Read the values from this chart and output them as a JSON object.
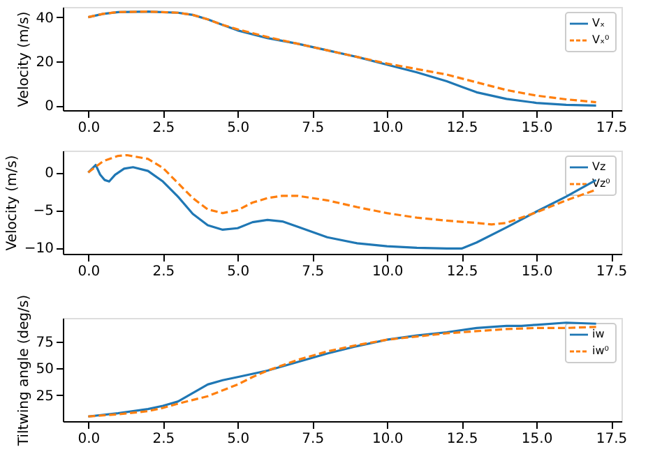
{
  "chart_data": [
    {
      "type": "line",
      "ylabel": "Velocity (m/s)",
      "xlim": [
        -0.85,
        17.85
      ],
      "xticks": [
        {
          "value": 0,
          "label": "0.0"
        },
        2.5,
        {
          "value": 5,
          "label": "5.0"
        },
        7.5,
        {
          "value": 10,
          "label": "10.0"
        },
        12.5,
        {
          "value": 15,
          "label": "15.0"
        },
        17.5
      ],
      "ylim": [
        -2.1,
        44.6
      ],
      "yticks": [
        0,
        20,
        40
      ],
      "grid": false,
      "legend": "top right",
      "series": [
        {
          "name": "Vₓ",
          "color": "#1f77b4",
          "line_style": "solid",
          "x": [
            0,
            0.5,
            1,
            2,
            3,
            3.5,
            4,
            4.5,
            5,
            6,
            7,
            8,
            9,
            10,
            11,
            12,
            12.5,
            13,
            14,
            15,
            16,
            17
          ],
          "values": [
            40,
            41.5,
            42.3,
            42.5,
            42,
            41,
            39,
            36.5,
            34,
            30.5,
            28,
            25,
            22,
            18.5,
            15,
            11,
            8.5,
            6,
            3,
            1.2,
            0.3,
            0
          ]
        },
        {
          "name": "Vₓ⁰",
          "color": "#ff7f0e",
          "line_style": "dashed",
          "x": [
            0,
            0.5,
            1,
            2,
            3,
            3.5,
            4,
            4.5,
            5,
            6,
            7,
            8,
            9,
            10,
            11,
            12,
            13,
            14,
            15,
            16,
            17
          ],
          "values": [
            40,
            41.5,
            42.3,
            42.5,
            42,
            41,
            39,
            36.5,
            34.5,
            31,
            28,
            25,
            22,
            19,
            16.5,
            14,
            10.5,
            7,
            4.5,
            2.8,
            1.5
          ]
        }
      ]
    },
    {
      "type": "line",
      "ylabel": "Velocity (m/s)",
      "xlim": [
        -0.85,
        17.85
      ],
      "xticks": [
        {
          "value": 0,
          "label": "0.0"
        },
        2.5,
        {
          "value": 5,
          "label": "5.0"
        },
        7.5,
        {
          "value": 10,
          "label": "10.0"
        },
        12.5,
        {
          "value": 15,
          "label": "15.0"
        },
        17.5
      ],
      "ylim": [
        -10.8,
        2.9
      ],
      "yticks": [
        -10,
        -5,
        0
      ],
      "grid": false,
      "legend": "top right",
      "series": [
        {
          "name": "Vz",
          "color": "#1f77b4",
          "line_style": "solid",
          "x": [
            0,
            0.25,
            0.4,
            0.55,
            0.7,
            0.9,
            1.2,
            1.5,
            2,
            2.5,
            3,
            3.5,
            4,
            4.5,
            5,
            5.5,
            6,
            6.5,
            7,
            8,
            9,
            10,
            11,
            12,
            12.5,
            13,
            14,
            15,
            16,
            17
          ],
          "values": [
            0,
            1,
            -0.3,
            -1,
            -1.2,
            -0.3,
            0.5,
            0.7,
            0.2,
            -1.2,
            -3.2,
            -5.5,
            -7,
            -7.6,
            -7.4,
            -6.6,
            -6.3,
            -6.5,
            -7.2,
            -8.6,
            -9.4,
            -9.8,
            -10,
            -10.1,
            -10.1,
            -9.3,
            -7.3,
            -5.2,
            -3.2,
            -1
          ]
        },
        {
          "name": "Vz⁰",
          "color": "#ff7f0e",
          "line_style": "dashed",
          "x": [
            0,
            0.5,
            1,
            1.3,
            2,
            2.5,
            3,
            3.5,
            4,
            4.5,
            5,
            5.5,
            6,
            6.5,
            7,
            8,
            9,
            10,
            11,
            12,
            13,
            13.5,
            14,
            15,
            16,
            17
          ],
          "values": [
            0,
            1.5,
            2.2,
            2.3,
            1.8,
            0.6,
            -1.4,
            -3.4,
            -4.9,
            -5.4,
            -5,
            -4,
            -3.4,
            -3.1,
            -3.1,
            -3.7,
            -4.6,
            -5.4,
            -6,
            -6.4,
            -6.7,
            -6.9,
            -6.7,
            -5.3,
            -3.7,
            -2.3
          ]
        }
      ]
    },
    {
      "type": "line",
      "ylabel": "Tiltwing angle (deg/s)",
      "xlim": [
        -0.85,
        17.85
      ],
      "xticks": [
        {
          "value": 0,
          "label": "0.0"
        },
        2.5,
        {
          "value": 5,
          "label": "5.0"
        },
        7.5,
        {
          "value": 10,
          "label": "10.0"
        },
        12.5,
        {
          "value": 15,
          "label": "15.0"
        },
        17.5
      ],
      "ylim": [
        0.6,
        97.4
      ],
      "yticks": [
        25,
        50,
        75
      ],
      "grid": false,
      "legend": "top right",
      "series": [
        {
          "name": "iw",
          "color": "#1f77b4",
          "line_style": "solid",
          "x": [
            0,
            1,
            2,
            2.5,
            3,
            3.5,
            4,
            4.5,
            5,
            6,
            7,
            8,
            9,
            10,
            11,
            12,
            13,
            14,
            14.5,
            15,
            16,
            17
          ],
          "values": [
            5,
            8,
            12,
            15,
            19,
            27,
            35,
            39,
            42,
            48,
            56,
            64,
            71,
            77,
            81,
            84,
            88,
            90,
            90,
            91,
            93,
            92
          ]
        },
        {
          "name": "iw⁰",
          "color": "#ff7f0e",
          "line_style": "dashed",
          "x": [
            0,
            1,
            2,
            2.5,
            3,
            4,
            5,
            5.5,
            6,
            7,
            8,
            9,
            10,
            11,
            12,
            13,
            14,
            15,
            16,
            17
          ],
          "values": [
            5,
            7,
            10,
            13,
            17,
            24,
            35,
            42,
            48,
            58,
            66,
            72,
            77,
            80,
            83,
            85,
            87,
            88,
            88,
            89
          ]
        }
      ]
    }
  ]
}
